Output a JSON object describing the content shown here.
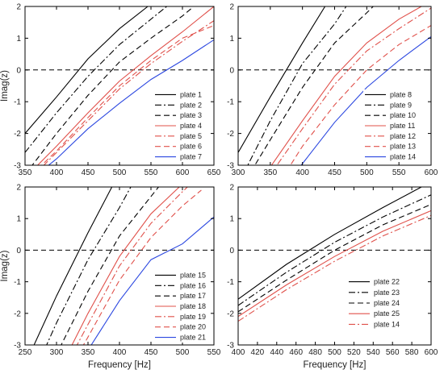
{
  "chart_data": [
    {
      "type": "line",
      "xlim": [
        350,
        650
      ],
      "ylim": [
        -3,
        2
      ],
      "xticks": [
        350,
        400,
        450,
        500,
        550,
        600,
        650
      ],
      "yticks": [
        -3,
        -2,
        -1,
        0,
        1,
        2
      ],
      "xlabel": "",
      "ylabel": "Imag(z)",
      "reference_line": {
        "y": 0,
        "style": "dashed",
        "color": "#000000"
      },
      "legend_position": "bottom-right",
      "series": [
        {
          "name": "plate 1",
          "color": "#000000",
          "dash": "solid",
          "x": [
            350,
            400,
            450,
            500,
            545
          ],
          "y": [
            -2.0,
            -0.85,
            0.35,
            1.3,
            2.0
          ]
        },
        {
          "name": "plate 2",
          "color": "#000000",
          "dash": "dashdot",
          "x": [
            350,
            400,
            450,
            500,
            550,
            575
          ],
          "y": [
            -2.6,
            -1.35,
            -0.2,
            0.8,
            1.6,
            2.0
          ]
        },
        {
          "name": "plate 3",
          "color": "#000000",
          "dash": "dashed",
          "x": [
            350,
            400,
            450,
            500,
            550,
            600,
            615
          ],
          "y": [
            -3.3,
            -2.0,
            -0.8,
            0.25,
            1.0,
            1.7,
            1.95
          ]
        },
        {
          "name": "plate 4",
          "color": "#e0504a",
          "dash": "solid",
          "x": [
            350,
            400,
            450,
            500,
            550,
            600,
            650
          ],
          "y": [
            -3.4,
            -2.4,
            -1.35,
            -0.35,
            0.45,
            1.2,
            2.0
          ]
        },
        {
          "name": "plate 5",
          "color": "#e0504a",
          "dash": "dashdot",
          "x": [
            350,
            400,
            450,
            500,
            550,
            600,
            650
          ],
          "y": [
            -3.6,
            -2.6,
            -1.6,
            -0.6,
            0.2,
            0.9,
            1.55
          ]
        },
        {
          "name": "plate 6",
          "color": "#e0504a",
          "dash": "dashed",
          "x": [
            350,
            400,
            450,
            500,
            550,
            600,
            650
          ],
          "y": [
            -3.5,
            -2.55,
            -1.5,
            -0.5,
            0.3,
            1.0,
            1.4
          ]
        },
        {
          "name": "plate 7",
          "color": "#2b47e0",
          "dash": "solid",
          "x": [
            350,
            400,
            450,
            500,
            550,
            600,
            650
          ],
          "y": [
            -3.6,
            -2.8,
            -1.85,
            -1.05,
            -0.3,
            0.3,
            0.95
          ]
        }
      ]
    },
    {
      "type": "line",
      "xlim": [
        300,
        600
      ],
      "ylim": [
        -3,
        2
      ],
      "xticks": [
        300,
        350,
        400,
        450,
        500,
        550,
        600
      ],
      "yticks": [
        -3,
        -2,
        -1,
        0,
        1,
        2
      ],
      "xlabel": "",
      "ylabel": "",
      "reference_line": {
        "y": 0,
        "style": "dashed",
        "color": "#000000"
      },
      "legend_position": "bottom-right",
      "series": [
        {
          "name": "plate 8",
          "color": "#000000",
          "dash": "solid",
          "x": [
            300,
            350,
            400,
            435
          ],
          "y": [
            -2.6,
            -0.85,
            0.85,
            2.0
          ]
        },
        {
          "name": "plate 9",
          "color": "#000000",
          "dash": "dashdot",
          "x": [
            300,
            350,
            400,
            450,
            468
          ],
          "y": [
            -3.6,
            -1.6,
            0.2,
            1.45,
            2.0
          ]
        },
        {
          "name": "plate 10",
          "color": "#000000",
          "dash": "dashed",
          "x": [
            320,
            350,
            400,
            450,
            500,
            510
          ],
          "y": [
            -3.2,
            -2.2,
            -0.55,
            0.85,
            1.8,
            2.0
          ]
        },
        {
          "name": "plate 11",
          "color": "#e0504a",
          "dash": "solid",
          "x": [
            345,
            400,
            450,
            500,
            550,
            585
          ],
          "y": [
            -3.2,
            -1.6,
            -0.2,
            0.85,
            1.6,
            2.0
          ]
        },
        {
          "name": "plate 12",
          "color": "#e0504a",
          "dash": "dashdot",
          "x": [
            350,
            400,
            450,
            500,
            550,
            600
          ],
          "y": [
            -3.3,
            -1.85,
            -0.45,
            0.6,
            1.3,
            1.95
          ]
        },
        {
          "name": "plate 13",
          "color": "#e0504a",
          "dash": "dashed",
          "x": [
            375,
            400,
            450,
            500,
            550,
            600
          ],
          "y": [
            -3.2,
            -2.4,
            -1.1,
            0.0,
            0.8,
            1.4
          ]
        },
        {
          "name": "plate 14",
          "color": "#2b47e0",
          "dash": "solid",
          "x": [
            390,
            400,
            450,
            500,
            550,
            600
          ],
          "y": [
            -3.2,
            -2.95,
            -1.65,
            -0.55,
            0.3,
            1.05
          ]
        }
      ]
    },
    {
      "type": "line",
      "xlim": [
        250,
        550
      ],
      "ylim": [
        -3,
        2
      ],
      "xticks": [
        250,
        300,
        350,
        400,
        450,
        500,
        550
      ],
      "yticks": [
        -3,
        -2,
        -1,
        0,
        1,
        2
      ],
      "xlabel": "Frequency [Hz]",
      "ylabel": "Imag(z)",
      "reference_line": {
        "y": 0,
        "style": "dashed",
        "color": "#000000"
      },
      "legend_position": "bottom-right",
      "series": [
        {
          "name": "plate 15",
          "color": "#000000",
          "dash": "solid",
          "x": [
            262,
            300,
            350,
            388
          ],
          "y": [
            -3.1,
            -1.45,
            0.55,
            2.0
          ]
        },
        {
          "name": "plate 16",
          "color": "#000000",
          "dash": "dashdot",
          "x": [
            282,
            300,
            350,
            400,
            418
          ],
          "y": [
            -3.1,
            -2.3,
            -0.3,
            1.35,
            2.0
          ]
        },
        {
          "name": "plate 17",
          "color": "#000000",
          "dash": "dashed",
          "x": [
            305,
            350,
            400,
            450,
            462
          ],
          "y": [
            -3.1,
            -1.3,
            0.45,
            1.7,
            2.0
          ]
        },
        {
          "name": "plate 18",
          "color": "#e0504a",
          "dash": "solid",
          "x": [
            322,
            350,
            400,
            450,
            495
          ],
          "y": [
            -3.1,
            -2.0,
            -0.2,
            1.15,
            2.0
          ]
        },
        {
          "name": "plate 19",
          "color": "#e0504a",
          "dash": "dashdot",
          "x": [
            330,
            350,
            400,
            450,
            500,
            508
          ],
          "y": [
            -3.1,
            -2.35,
            -0.5,
            0.85,
            1.85,
            2.0
          ]
        },
        {
          "name": "plate 20",
          "color": "#e0504a",
          "dash": "dashed",
          "x": [
            340,
            350,
            400,
            450,
            500,
            530
          ],
          "y": [
            -3.1,
            -2.75,
            -0.95,
            0.4,
            1.4,
            1.9
          ]
        },
        {
          "name": "plate 21",
          "color": "#2b47e0",
          "dash": "solid",
          "x": [
            352,
            400,
            450,
            500,
            550
          ],
          "y": [
            -3.1,
            -1.6,
            -0.3,
            0.2,
            1.05
          ]
        }
      ]
    },
    {
      "type": "line",
      "xlim": [
        400,
        600
      ],
      "ylim": [
        -3,
        2
      ],
      "xticks": [
        400,
        420,
        440,
        460,
        480,
        500,
        520,
        540,
        560,
        580,
        600
      ],
      "yticks": [
        -3,
        -2,
        -1,
        0,
        1,
        2
      ],
      "xlabel": "Frequency [Hz]",
      "ylabel": "",
      "reference_line": {
        "y": 0,
        "style": "dashed",
        "color": "#000000"
      },
      "legend_position": "bottom-left",
      "series": [
        {
          "name": "plate 22",
          "color": "#000000",
          "dash": "solid",
          "x": [
            400,
            450,
            500,
            550,
            590
          ],
          "y": [
            -1.55,
            -0.45,
            0.5,
            1.35,
            2.0
          ]
        },
        {
          "name": "plate 23",
          "color": "#000000",
          "dash": "dashdot",
          "x": [
            400,
            450,
            500,
            550,
            600
          ],
          "y": [
            -1.75,
            -0.7,
            0.25,
            1.05,
            1.75
          ]
        },
        {
          "name": "plate 24",
          "color": "#000000",
          "dash": "dashed",
          "x": [
            400,
            450,
            500,
            550,
            600
          ],
          "y": [
            -1.95,
            -0.95,
            0.0,
            0.8,
            1.45
          ]
        },
        {
          "name": "plate 25",
          "color": "#e0504a",
          "dash": "solid",
          "x": [
            400,
            450,
            500,
            550,
            600
          ],
          "y": [
            -2.1,
            -1.1,
            -0.2,
            0.6,
            1.25
          ]
        },
        {
          "name": "plate 14",
          "color": "#e0504a",
          "dash": "dashdot",
          "x": [
            400,
            450,
            500,
            550,
            600
          ],
          "y": [
            -2.25,
            -1.25,
            -0.35,
            0.45,
            1.1
          ]
        }
      ]
    }
  ]
}
